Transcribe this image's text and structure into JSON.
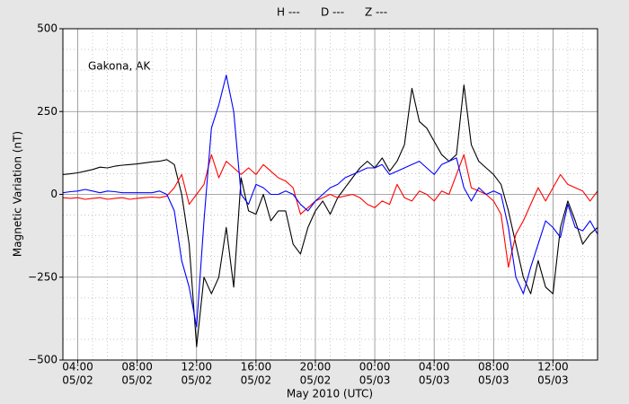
{
  "chart_data": {
    "type": "line",
    "annotation": "Gakona, AK",
    "x_label": "May 2010 (UTC)",
    "y_label": "Magnetic Variation (nT)",
    "xlim": [
      3,
      39
    ],
    "ylim": [
      -500,
      500
    ],
    "xticks": [
      {
        "value": 4,
        "label": [
          "04:00",
          "05/02"
        ]
      },
      {
        "value": 8,
        "label": [
          "08:00",
          "05/02"
        ]
      },
      {
        "value": 12,
        "label": [
          "12:00",
          "05/02"
        ]
      },
      {
        "value": 16,
        "label": [
          "16:00",
          "05/02"
        ]
      },
      {
        "value": 20,
        "label": [
          "20:00",
          "05/02"
        ]
      },
      {
        "value": 24,
        "label": [
          "00:00",
          "05/03"
        ]
      },
      {
        "value": 28,
        "label": [
          "04:00",
          "05/03"
        ]
      },
      {
        "value": 32,
        "label": [
          "08:00",
          "05/03"
        ]
      },
      {
        "value": 36,
        "label": [
          "12:00",
          "05/03"
        ]
      }
    ],
    "minor_xticks": [
      5,
      6,
      7,
      9,
      10,
      11,
      13,
      14,
      15,
      17,
      18,
      19,
      21,
      22,
      23,
      25,
      26,
      27,
      29,
      30,
      31,
      33,
      34,
      35,
      37,
      38
    ],
    "yticks": [
      {
        "value": -500,
        "label": "−500"
      },
      {
        "value": -250,
        "label": "−250"
      },
      0,
      250,
      500
    ],
    "minor_yticks": [
      -437.5,
      -375,
      -312.5,
      -187.5,
      -125,
      -62.5,
      62.5,
      125,
      187.5,
      312.5,
      375,
      437.5
    ],
    "grid": true,
    "x": [
      3,
      3.5,
      4,
      4.5,
      5,
      5.5,
      6,
      6.5,
      7,
      7.5,
      8,
      8.5,
      9,
      9.5,
      10,
      10.5,
      11,
      11.5,
      12,
      12.5,
      13,
      13.5,
      14,
      14.5,
      15,
      15.5,
      16,
      16.5,
      17,
      17.5,
      18,
      18.5,
      19,
      19.5,
      20,
      20.5,
      21,
      21.5,
      22,
      22.5,
      23,
      23.5,
      24,
      24.5,
      25,
      25.5,
      26,
      26.5,
      27,
      27.5,
      28,
      28.5,
      29,
      29.5,
      30,
      30.5,
      31,
      31.5,
      32,
      32.5,
      33,
      33.5,
      34,
      34.5,
      35,
      35.5,
      36,
      36.5,
      37,
      37.5,
      38,
      38.5,
      39
    ],
    "series": [
      {
        "name": "H ---",
        "color": "#000000",
        "values": [
          60,
          62,
          65,
          70,
          75,
          82,
          80,
          85,
          88,
          90,
          92,
          95,
          98,
          100,
          105,
          90,
          0,
          -150,
          -460,
          -250,
          -300,
          -250,
          -100,
          -280,
          50,
          -50,
          -60,
          0,
          -80,
          -50,
          -50,
          -150,
          -180,
          -100,
          -50,
          -20,
          -60,
          -10,
          20,
          50,
          80,
          100,
          80,
          110,
          70,
          100,
          150,
          320,
          220,
          200,
          160,
          120,
          100,
          120,
          330,
          150,
          100,
          80,
          60,
          30,
          -50,
          -150,
          -250,
          -300,
          -200,
          -280,
          -300,
          -100,
          -20,
          -80,
          -150,
          -120,
          -100
        ]
      },
      {
        "name": "D ---",
        "color": "#ff0000",
        "values": [
          -10,
          -12,
          -10,
          -15,
          -12,
          -10,
          -15,
          -12,
          -10,
          -15,
          -12,
          -10,
          -8,
          -10,
          -5,
          20,
          60,
          -30,
          0,
          30,
          120,
          50,
          100,
          80,
          60,
          80,
          60,
          90,
          70,
          50,
          40,
          20,
          -60,
          -40,
          -20,
          -10,
          0,
          -10,
          -5,
          0,
          -10,
          -30,
          -40,
          -20,
          -30,
          30,
          -10,
          -20,
          10,
          0,
          -20,
          10,
          0,
          60,
          120,
          20,
          10,
          0,
          -20,
          -60,
          -220,
          -120,
          -80,
          -30,
          20,
          -20,
          20,
          60,
          30,
          20,
          10,
          -20,
          10
        ]
      },
      {
        "name": "Z ---",
        "color": "#0000ff",
        "values": [
          5,
          8,
          10,
          15,
          10,
          5,
          10,
          8,
          5,
          5,
          5,
          5,
          5,
          10,
          0,
          -50,
          -200,
          -280,
          -400,
          -80,
          200,
          270,
          360,
          250,
          0,
          -30,
          30,
          20,
          0,
          0,
          10,
          0,
          -30,
          -50,
          -20,
          0,
          20,
          30,
          50,
          60,
          70,
          80,
          80,
          90,
          60,
          70,
          80,
          90,
          100,
          80,
          60,
          90,
          100,
          110,
          20,
          -20,
          20,
          0,
          10,
          0,
          -100,
          -250,
          -300,
          -220,
          -150,
          -80,
          -100,
          -130,
          -30,
          -100,
          -110,
          -80,
          -120
        ]
      }
    ]
  }
}
